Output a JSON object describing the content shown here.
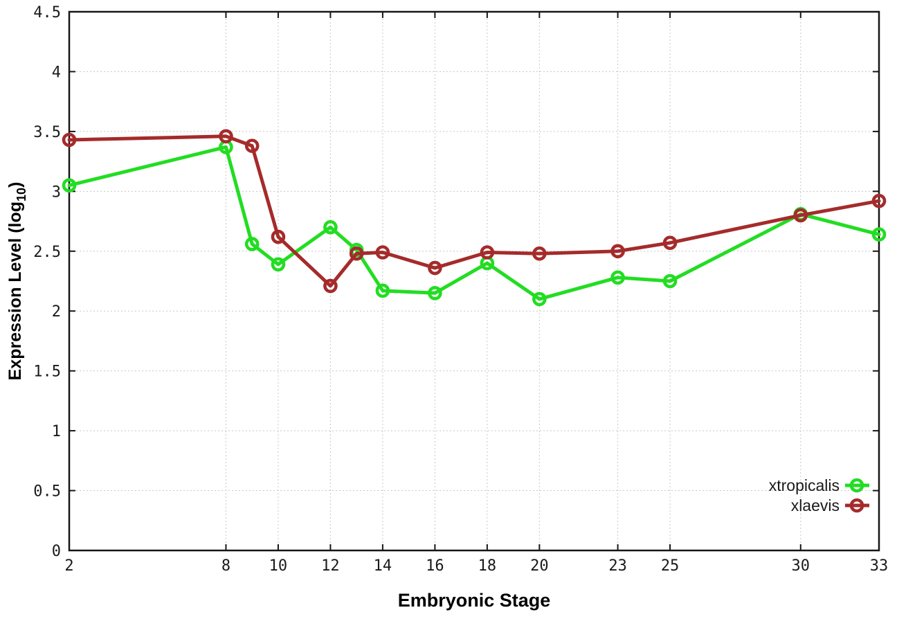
{
  "chart_data": {
    "type": "line",
    "title": "",
    "xlabel": "Embryonic Stage",
    "ylabel": "Expression Level (log10)",
    "ylabel_parts": {
      "main": "Expression Level (log",
      "sub": "10",
      "suffix": ")"
    },
    "xlim": [
      2,
      33
    ],
    "ylim": [
      0,
      4.5
    ],
    "grid": true,
    "legend_position": "inside-bottom-right",
    "x_ticks": [
      2,
      8,
      10,
      12,
      14,
      16,
      18,
      20,
      23,
      25,
      30,
      33
    ],
    "x_tick_labels": [
      "2",
      "8",
      "10",
      "12",
      "14",
      "16",
      "18",
      "20",
      "23",
      "25",
      "30",
      "33"
    ],
    "y_ticks": [
      0,
      0.5,
      1,
      1.5,
      2,
      2.5,
      3,
      3.5,
      4,
      4.5
    ],
    "y_tick_labels": [
      "0",
      "0.5",
      "1",
      "1.5",
      "2",
      "2.5",
      "3",
      "3.5",
      "4",
      "4.5"
    ],
    "x": [
      2,
      8,
      9,
      10,
      12,
      13,
      14,
      16,
      18,
      20,
      23,
      25,
      30,
      33
    ],
    "series": [
      {
        "name": "xtropicalis",
        "color": "#22dd22",
        "marker": "open-circle",
        "values": [
          3.05,
          3.37,
          2.56,
          2.39,
          2.7,
          2.51,
          2.17,
          2.15,
          2.4,
          2.1,
          2.28,
          2.25,
          2.81,
          2.64
        ]
      },
      {
        "name": "xlaevis",
        "color": "#a52b2b",
        "marker": "open-circle",
        "values": [
          3.43,
          3.46,
          3.38,
          2.62,
          2.21,
          2.48,
          2.49,
          2.36,
          2.49,
          2.48,
          2.5,
          2.57,
          2.8,
          2.92
        ]
      }
    ]
  },
  "colors": {
    "background": "#ffffff",
    "grid": "#c8c8c8",
    "axis": "#161616",
    "tick_text": "#1a1a1a"
  }
}
